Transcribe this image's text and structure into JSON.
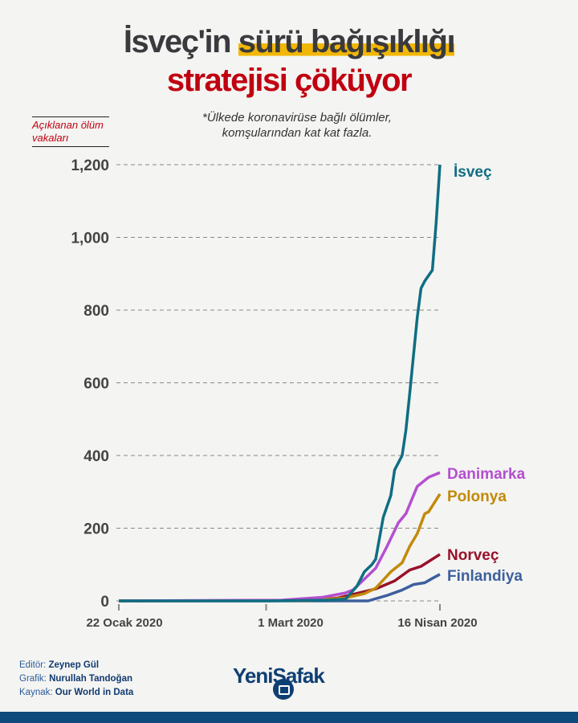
{
  "header": {
    "title_part1": "İsveç'in ",
    "title_highlight": "sürü bağışıklığı",
    "title_line2": "stratejisi çöküyor",
    "subtitle": "*Ülkede koronavirüse bağlı ölümler, komşularından kat kat fazla.",
    "y_axis_label": "Açıklanan ölüm vakaları"
  },
  "chart_data": {
    "type": "line",
    "title": "İsveç'in sürü bağışıklığı stratejisi çöküyor",
    "ylabel": "Açıklanan ölüm vakaları",
    "ylim": [
      0,
      1200
    ],
    "yticks": [
      "0",
      "200",
      "400",
      "600",
      "800",
      "1,000",
      "1,200"
    ],
    "ytick_values": [
      0,
      200,
      400,
      600,
      800,
      1000,
      1200
    ],
    "xlim_days": [
      0,
      85
    ],
    "xticks": [
      {
        "label": "22 Ocak 2020",
        "day": 0
      },
      {
        "label": "1 Mart 2020",
        "day": 39
      },
      {
        "label": "16 Nisan 2020",
        "day": 85
      }
    ],
    "grid": "horizontal dashed",
    "series": [
      {
        "name": "İsveç",
        "color": "#0f6e82",
        "points": [
          [
            0,
            0
          ],
          [
            40,
            0
          ],
          [
            55,
            2
          ],
          [
            60,
            5
          ],
          [
            63,
            40
          ],
          [
            65,
            80
          ],
          [
            67,
            100
          ],
          [
            68,
            115
          ],
          [
            70,
            230
          ],
          [
            72,
            290
          ],
          [
            73,
            360
          ],
          [
            75,
            400
          ],
          [
            76,
            470
          ],
          [
            77,
            570
          ],
          [
            79,
            780
          ],
          [
            80,
            860
          ],
          [
            81,
            880
          ],
          [
            83,
            910
          ],
          [
            84,
            1040
          ],
          [
            85,
            1200
          ]
        ]
      },
      {
        "name": "Danimarka",
        "color": "#b44fcf",
        "points": [
          [
            0,
            0
          ],
          [
            43,
            2
          ],
          [
            54,
            10
          ],
          [
            60,
            22
          ],
          [
            62,
            30
          ],
          [
            66,
            70
          ],
          [
            68,
            90
          ],
          [
            71,
            150
          ],
          [
            74,
            215
          ],
          [
            76,
            240
          ],
          [
            79,
            315
          ],
          [
            82,
            340
          ],
          [
            85,
            353
          ]
        ]
      },
      {
        "name": "Polonya",
        "color": "#c28a0a",
        "points": [
          [
            0,
            0
          ],
          [
            50,
            1
          ],
          [
            60,
            8
          ],
          [
            65,
            20
          ],
          [
            68,
            35
          ],
          [
            72,
            80
          ],
          [
            75,
            105
          ],
          [
            77,
            150
          ],
          [
            79,
            185
          ],
          [
            81,
            240
          ],
          [
            82,
            245
          ],
          [
            85,
            294
          ]
        ]
      },
      {
        "name": "Norveç",
        "color": "#98112a",
        "points": [
          [
            0,
            0
          ],
          [
            50,
            1
          ],
          [
            58,
            8
          ],
          [
            62,
            18
          ],
          [
            68,
            33
          ],
          [
            73,
            55
          ],
          [
            77,
            85
          ],
          [
            80,
            95
          ],
          [
            85,
            128
          ]
        ]
      },
      {
        "name": "Finlandiya",
        "color": "#3e5f9e",
        "points": [
          [
            0,
            0
          ],
          [
            66,
            0
          ],
          [
            71,
            15
          ],
          [
            75,
            30
          ],
          [
            78,
            45
          ],
          [
            81,
            50
          ],
          [
            83,
            62
          ],
          [
            85,
            73
          ]
        ]
      }
    ]
  },
  "credits": {
    "editor_label": "Editör:",
    "editor": "Zeynep Gül",
    "graphic_label": "Grafik:",
    "graphic": "Nurullah Tandoğan",
    "source_label": "Kaynak:",
    "source": "Our World in Data"
  },
  "logo": "YeniŞafak"
}
